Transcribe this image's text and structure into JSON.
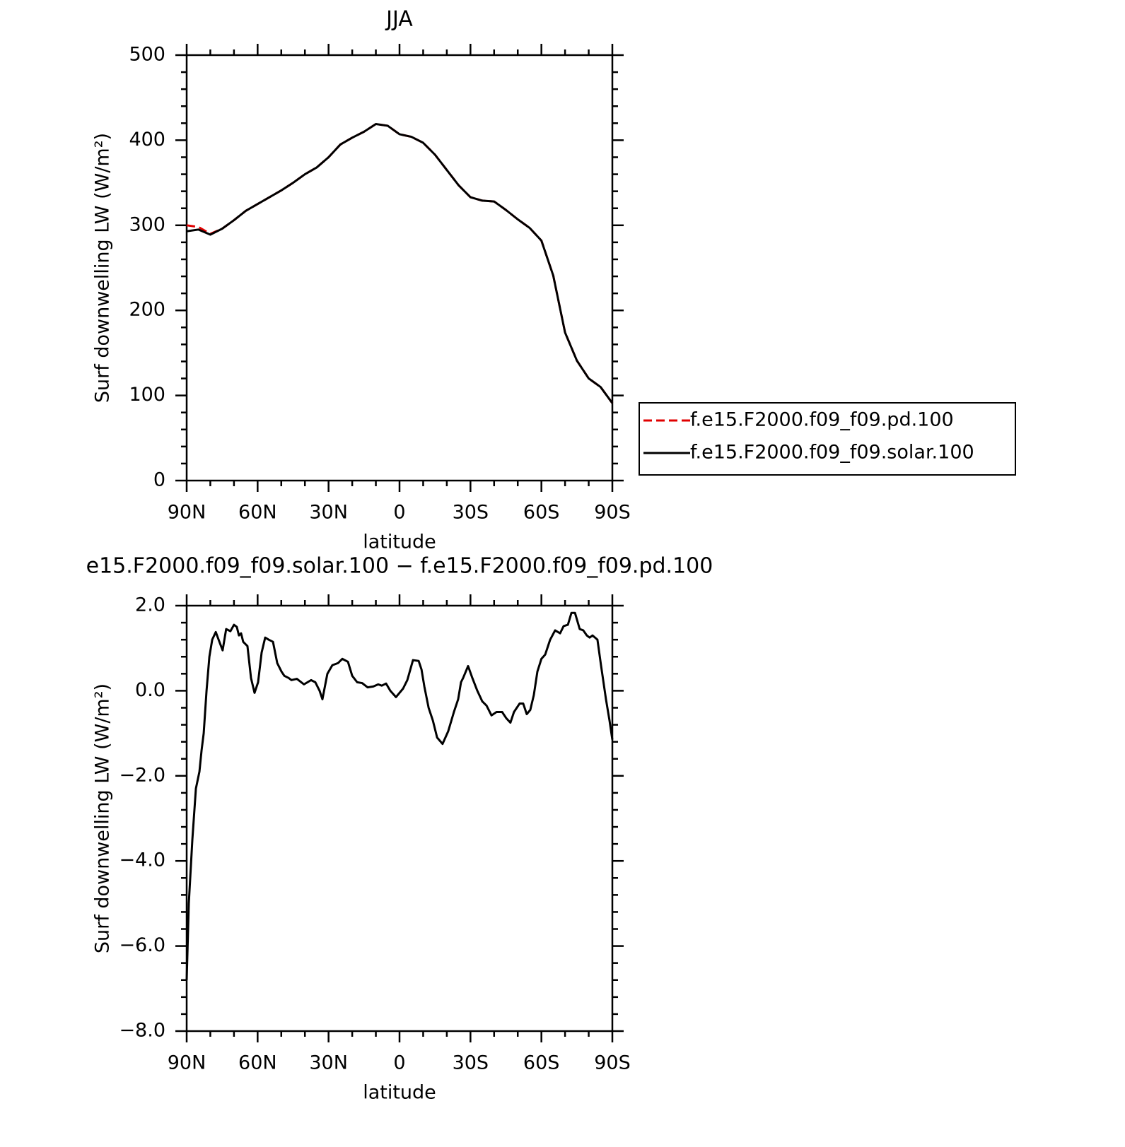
{
  "chart_data": [
    {
      "type": "line",
      "title": "JJA",
      "x_label": "latitude",
      "y_label": "Surf downwelling LW (W/m²)",
      "x": [
        90,
        85,
        80,
        75,
        70,
        65,
        60,
        55,
        50,
        45,
        40,
        35,
        30,
        25,
        20,
        15,
        10,
        5,
        0,
        -5,
        -10,
        -15,
        -20,
        -25,
        -30,
        -35,
        -40,
        -45,
        -50,
        -55,
        -60,
        -65,
        -70,
        -75,
        -80,
        -85,
        -90
      ],
      "series": [
        {
          "name": "f.e15.F2000.f09_f09.pd.100",
          "color": "#e00000",
          "line_style": "dashed",
          "values": [
            300,
            298,
            290,
            296,
            306,
            317,
            325,
            333,
            341,
            350,
            360,
            368,
            380,
            395,
            403,
            410,
            419,
            417,
            407,
            404,
            397,
            383,
            365,
            347,
            333,
            329,
            328,
            318,
            307,
            297,
            282,
            241,
            174,
            141,
            120,
            110,
            91
          ]
        },
        {
          "name": "f.e15.F2000.f09_f09.solar.100",
          "color": "#000000",
          "line_style": "solid",
          "values": [
            293,
            295,
            289,
            296,
            306,
            317,
            325,
            333,
            341,
            350,
            360,
            368,
            380,
            395,
            403,
            410,
            419,
            417,
            407,
            404,
            397,
            383,
            365,
            347,
            333,
            329,
            328,
            318,
            307,
            297,
            282,
            241,
            174,
            141,
            120,
            110,
            91
          ]
        }
      ],
      "xlim": [
        90,
        -90
      ],
      "xticks": [
        {
          "value": 90,
          "label": "90N"
        },
        {
          "value": 60,
          "label": "60N"
        },
        {
          "value": 30,
          "label": "30N"
        },
        0,
        {
          "value": -30,
          "label": "30S"
        },
        {
          "value": -60,
          "label": "60S"
        },
        {
          "value": -90,
          "label": "90S"
        }
      ],
      "ylim": [
        0,
        500
      ],
      "yticks": [
        0,
        100,
        200,
        300,
        400,
        500
      ],
      "legend": "outside right"
    },
    {
      "type": "line",
      "title": "e15.F2000.f09_f09.solar.100 − f.e15.F2000.f09_f09.pd.100",
      "x_label": "latitude",
      "y_label": "Surf downwelling LW (W/m²)",
      "x": [
        90,
        89.1,
        87.6,
        86.1,
        84.6,
        83.7,
        82.8,
        81.6,
        80.4,
        79.2,
        77.7,
        76.5,
        74.8,
        73.3,
        71.5,
        70,
        68.8,
        67.9,
        67,
        66.1,
        64.3,
        62.8,
        61.3,
        59.8,
        58.3,
        56.8,
        55.3,
        53.5,
        51.7,
        49.9,
        48.7,
        46.9,
        45.7,
        43.4,
        40.4,
        37.4,
        35.6,
        33.8,
        32.6,
        30.5,
        28.4,
        26,
        24.2,
        21.8,
        20,
        17.9,
        15.8,
        13.5,
        11.1,
        9,
        7.5,
        5.7,
        3.9,
        1.5,
        -1.5,
        -3.3,
        -5.7,
        -8.1,
        -9.3,
        -10.5,
        -12.3,
        -14.1,
        -15.9,
        -18.2,
        -20.6,
        -23,
        -24.8,
        -26,
        -26.9,
        -29,
        -30.8,
        -32.9,
        -35,
        -36.8,
        -38.9,
        -41,
        -43.4,
        -45.2,
        -46.9,
        -48.4,
        -50.8,
        -52.3,
        -53.8,
        -55.3,
        -56.8,
        -58.3,
        -60,
        -61.6,
        -63.7,
        -65.8,
        -67.9,
        -69.4,
        -71.2,
        -72.7,
        -74.2,
        -76.2,
        -77.7,
        -79.2,
        -80.4,
        -81.6,
        -83.7,
        -85.2,
        -87.3,
        -88.8,
        -90
      ],
      "series": [
        {
          "color": "#000000",
          "line_style": "solid",
          "values": [
            -6.8,
            -5,
            -3.5,
            -2.3,
            -1.9,
            -1.4,
            -1.0,
            0.0,
            0.8,
            1.2,
            1.38,
            1.2,
            0.95,
            1.45,
            1.4,
            1.55,
            1.5,
            1.3,
            1.35,
            1.15,
            1.05,
            0.3,
            -0.05,
            0.2,
            0.9,
            1.25,
            1.2,
            1.15,
            0.65,
            0.45,
            0.35,
            0.3,
            0.25,
            0.28,
            0.15,
            0.25,
            0.2,
            0.0,
            -0.2,
            0.4,
            0.6,
            0.65,
            0.75,
            0.68,
            0.35,
            0.2,
            0.18,
            0.08,
            0.1,
            0.15,
            0.12,
            0.17,
            0.0,
            -0.15,
            0.05,
            0.25,
            0.72,
            0.7,
            0.5,
            0.1,
            -0.4,
            -0.7,
            -1.1,
            -1.25,
            -0.95,
            -0.5,
            -0.2,
            0.2,
            0.3,
            0.58,
            0.3,
            0.0,
            -0.25,
            -0.35,
            -0.58,
            -0.5,
            -0.5,
            -0.65,
            -0.75,
            -0.5,
            -0.3,
            -0.3,
            -0.55,
            -0.45,
            -0.1,
            0.45,
            0.75,
            0.85,
            1.2,
            1.42,
            1.35,
            1.52,
            1.55,
            1.83,
            1.83,
            1.45,
            1.42,
            1.3,
            1.25,
            1.3,
            1.2,
            0.6,
            -0.2,
            -0.7,
            -1.15
          ]
        }
      ],
      "xlim": [
        90,
        -90
      ],
      "xticks": [
        {
          "value": 90,
          "label": "90N"
        },
        {
          "value": 60,
          "label": "60N"
        },
        {
          "value": 30,
          "label": "30N"
        },
        0,
        {
          "value": -30,
          "label": "30S"
        },
        {
          "value": -60,
          "label": "60S"
        },
        {
          "value": -90,
          "label": "90S"
        }
      ],
      "ylim": [
        -8,
        2
      ],
      "yticks": [
        {
          "value": -8,
          "label": "−8.0"
        },
        {
          "value": -6,
          "label": "−6.0"
        },
        {
          "value": -4,
          "label": "−4.0"
        },
        {
          "value": -2,
          "label": "−2.0"
        },
        {
          "value": 0,
          "label": "0.0"
        },
        {
          "value": 2,
          "label": "2.0"
        }
      ]
    }
  ]
}
